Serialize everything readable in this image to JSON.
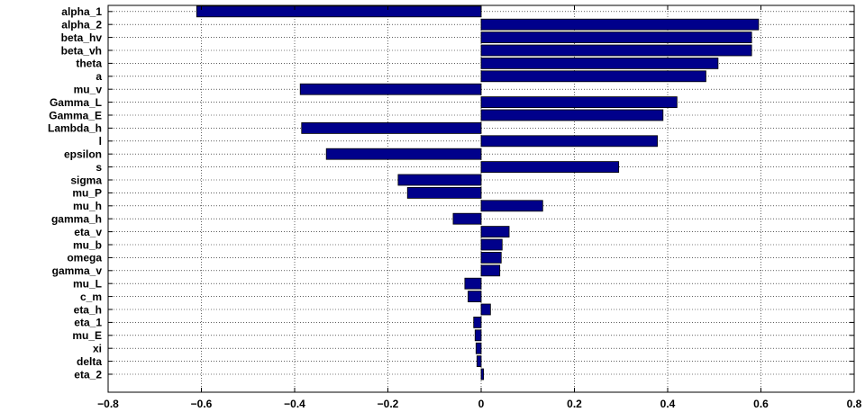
{
  "chart_data": {
    "type": "bar",
    "orientation": "horizontal",
    "title": "",
    "xlabel": "",
    "ylabel": "",
    "xlim": [
      -0.8,
      0.8
    ],
    "xticks": [
      -0.8,
      -0.6,
      -0.4,
      -0.2,
      0,
      0.2,
      0.4,
      0.6,
      0.8
    ],
    "xtick_labels": [
      "−0.8",
      "−0.6",
      "−0.4",
      "−0.2",
      "0",
      "0.2",
      "0.4",
      "0.6",
      "0.8"
    ],
    "grid": true,
    "categories": [
      "alpha_1",
      "alpha_2",
      "beta_hv",
      "beta_vh",
      "theta",
      "a",
      "mu_v",
      "Gamma_L",
      "Gamma_E",
      "Lambda_h",
      "l",
      "epsilon",
      "s",
      "sigma",
      "mu_P",
      "mu_h",
      "gamma_h",
      "eta_v",
      "mu_b",
      "omega",
      "gamma_v",
      "mu_L",
      "c_m",
      "eta_h",
      "eta_1",
      "mu_E",
      "xi",
      "delta",
      "eta_2"
    ],
    "values": [
      -0.61,
      0.595,
      0.58,
      0.58,
      0.508,
      0.482,
      -0.388,
      0.42,
      0.39,
      -0.385,
      0.378,
      -0.332,
      0.295,
      -0.178,
      -0.158,
      0.132,
      -0.06,
      0.06,
      0.045,
      0.043,
      0.04,
      -0.035,
      -0.028,
      0.02,
      -0.016,
      -0.013,
      -0.011,
      -0.009,
      0.005
    ],
    "bar_color": "#00008b"
  }
}
